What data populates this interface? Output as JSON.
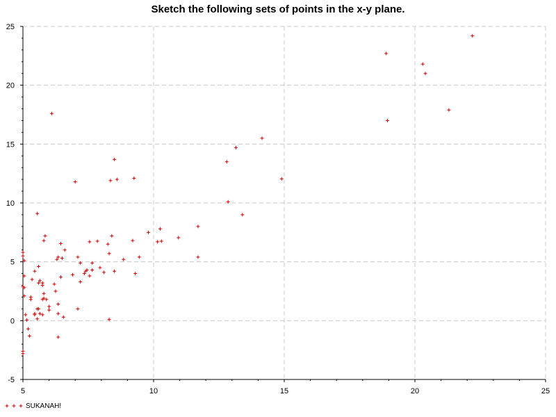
{
  "chart_data": {
    "type": "scatter",
    "title": "Sketch the following sets of points in the x-y plane.",
    "xlabel": "",
    "ylabel": "",
    "xlim": [
      5,
      25
    ],
    "ylim": [
      -5,
      25
    ],
    "x_ticks": [
      5,
      10,
      15,
      20,
      25
    ],
    "y_ticks": [
      -5,
      0,
      5,
      10,
      15,
      20,
      25
    ],
    "grid": true,
    "legend_position": "bottom-left",
    "series": [
      {
        "name": "SUKANAH!",
        "color": "#cc0000",
        "marker": "plus",
        "points": [
          [
            22.2,
            24.2
          ],
          [
            18.9,
            22.7
          ],
          [
            20.3,
            21.8
          ],
          [
            20.4,
            21.0
          ],
          [
            21.3,
            17.9
          ],
          [
            18.95,
            17.0
          ],
          [
            6.1,
            17.6
          ],
          [
            14.15,
            15.5
          ],
          [
            13.15,
            14.7
          ],
          [
            12.8,
            13.5
          ],
          [
            8.5,
            13.7
          ],
          [
            9.25,
            12.1
          ],
          [
            8.6,
            12.0
          ],
          [
            8.35,
            11.9
          ],
          [
            7.0,
            11.8
          ],
          [
            14.9,
            12.05
          ],
          [
            12.85,
            10.1
          ],
          [
            13.4,
            9.0
          ],
          [
            5.55,
            9.1
          ],
          [
            11.7,
            8.0
          ],
          [
            10.25,
            7.8
          ],
          [
            9.8,
            7.5
          ],
          [
            8.4,
            7.2
          ],
          [
            5.85,
            7.2
          ],
          [
            5.8,
            6.8
          ],
          [
            10.95,
            7.05
          ],
          [
            10.15,
            6.7
          ],
          [
            10.3,
            6.75
          ],
          [
            9.2,
            6.8
          ],
          [
            7.55,
            6.7
          ],
          [
            7.85,
            6.75
          ],
          [
            8.25,
            6.5
          ],
          [
            6.45,
            6.55
          ],
          [
            6.6,
            6.0
          ],
          [
            8.3,
            5.7
          ],
          [
            6.35,
            5.4
          ],
          [
            6.3,
            5.2
          ],
          [
            6.5,
            5.3
          ],
          [
            7.1,
            5.4
          ],
          [
            9.45,
            5.4
          ],
          [
            11.7,
            5.4
          ],
          [
            8.85,
            5.2
          ],
          [
            7.2,
            4.9
          ],
          [
            7.65,
            4.9
          ],
          [
            5.05,
            5.1
          ],
          [
            5.0,
            5.8
          ],
          [
            5.0,
            5.5
          ],
          [
            7.95,
            4.5
          ],
          [
            7.45,
            4.3
          ],
          [
            7.4,
            4.2
          ],
          [
            7.65,
            4.3
          ],
          [
            8.1,
            4.1
          ],
          [
            8.5,
            4.2
          ],
          [
            7.35,
            4.0
          ],
          [
            7.55,
            3.8
          ],
          [
            9.3,
            4.0
          ],
          [
            6.9,
            3.9
          ],
          [
            6.45,
            3.7
          ],
          [
            7.2,
            3.3
          ],
          [
            5.05,
            3.8
          ],
          [
            5.45,
            4.2
          ],
          [
            5.6,
            4.6
          ],
          [
            5.35,
            3.5
          ],
          [
            5.6,
            3.2
          ],
          [
            5.75,
            3.2
          ],
          [
            5.75,
            3.0
          ],
          [
            5.65,
            3.4
          ],
          [
            6.2,
            3.1
          ],
          [
            5.0,
            2.9
          ],
          [
            5.05,
            2.8
          ],
          [
            6.25,
            2.5
          ],
          [
            5.8,
            2.3
          ],
          [
            5.05,
            2.1
          ],
          [
            5.3,
            2.0
          ],
          [
            5.3,
            1.8
          ],
          [
            5.75,
            1.8
          ],
          [
            5.8,
            1.9
          ],
          [
            5.9,
            1.8
          ],
          [
            6.35,
            1.4
          ],
          [
            6.0,
            1.2
          ],
          [
            6.0,
            0.9
          ],
          [
            7.1,
            1.0
          ],
          [
            5.55,
            1.0
          ],
          [
            5.6,
            1.0
          ],
          [
            5.65,
            0.6
          ],
          [
            5.75,
            0.5
          ],
          [
            5.45,
            0.5
          ],
          [
            5.1,
            0.5
          ],
          [
            5.45,
            0.6
          ],
          [
            6.35,
            0.6
          ],
          [
            6.55,
            0.3
          ],
          [
            5.55,
            0.15
          ],
          [
            5.15,
            0.05
          ],
          [
            8.3,
            0.1
          ],
          [
            5.2,
            -0.7
          ],
          [
            5.25,
            -1.3
          ],
          [
            6.35,
            -1.4
          ],
          [
            5.0,
            -2.6
          ],
          [
            5.0,
            -2.8
          ]
        ]
      }
    ]
  }
}
